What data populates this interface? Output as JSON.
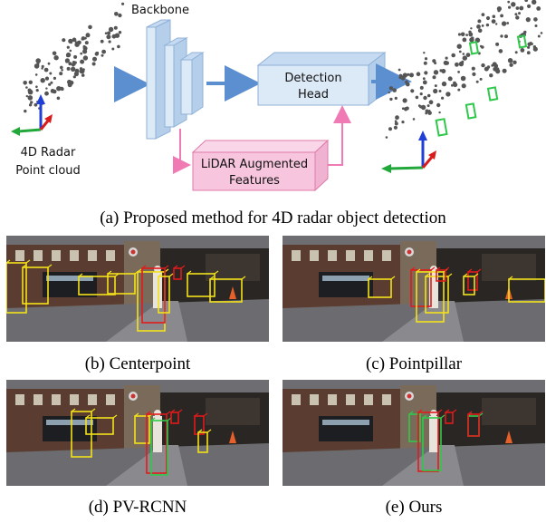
{
  "diagram": {
    "backbone_label": "Backbone",
    "detection_head_line1": "Detection",
    "detection_head_line2": "Head",
    "lidar_line1": "LiDAR Augmented",
    "lidar_line2": "Features",
    "input_label_line1": "4D Radar",
    "input_label_line2": "Point cloud",
    "caption": "(a) Proposed method for 4D radar object detection"
  },
  "results": [
    {
      "key": "centerpoint",
      "caption": "(b) Centerpoint"
    },
    {
      "key": "pointpillar",
      "caption": "(c) Pointpillar"
    },
    {
      "key": "pvrcnn",
      "caption": "(d) PV-RCNN"
    },
    {
      "key": "ours",
      "caption": "(e) Ours"
    }
  ],
  "colors": {
    "block_fill": "#dce9f7",
    "block_stroke": "#8fb1d8",
    "arrow_blue": "#5b8fd0",
    "lidar_fill": "#f7c6de",
    "lidar_stroke": "#e07aa8",
    "arrow_pink": "#f07ab3",
    "box_yellow": "#f3e21a",
    "box_red": "#e11b1b",
    "box_green": "#2fc84a",
    "axis_red": "#d91b1b",
    "axis_green": "#22a83a",
    "axis_blue": "#1f3fd6"
  }
}
